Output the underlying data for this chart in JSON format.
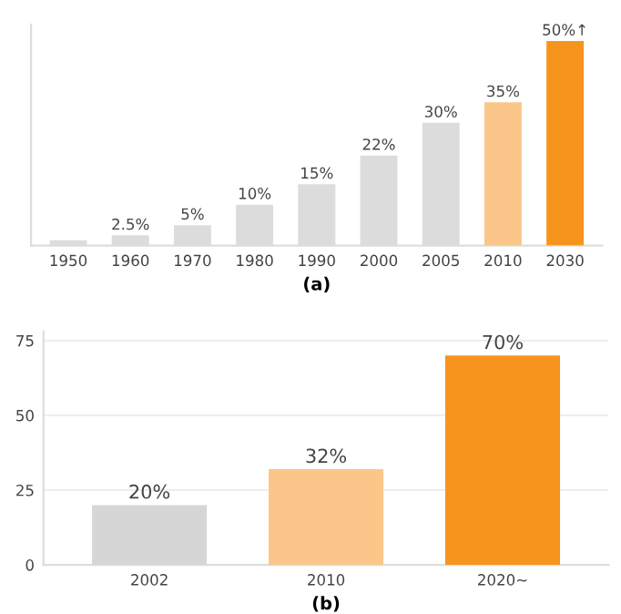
{
  "chart_data": [
    {
      "type": "bar",
      "xlabel": "(a)",
      "categories": [
        "1950",
        "1960",
        "1970",
        "1980",
        "1990",
        "2000",
        "2005",
        "2010",
        "2030"
      ],
      "values": [
        1.3,
        2.5,
        5,
        10,
        15,
        22,
        30,
        35,
        50
      ],
      "value_labels": [
        null,
        "2.5%",
        "5%",
        "10%",
        "15%",
        "22%",
        "30%",
        "35%",
        "50%↑"
      ],
      "colors": [
        "#dcdcdc",
        "#dcdcdc",
        "#dcdcdc",
        "#dcdcdc",
        "#dcdcdc",
        "#dcdcdc",
        "#dcdcdc",
        "#fbc68a",
        "#f7941d"
      ],
      "grid": false,
      "legend": false,
      "tick_labels": "x"
    },
    {
      "type": "bar",
      "xlabel": "(b)",
      "categories": [
        "2002",
        "2010",
        "2020~"
      ],
      "values": [
        20,
        32,
        70
      ],
      "value_labels": [
        "20%",
        "32%",
        "70%"
      ],
      "colors": [
        "#d6d6d6",
        "#fbc68a",
        "#f7941d"
      ],
      "ylim": [
        0,
        78
      ],
      "yticks": [
        0,
        25,
        50,
        75
      ],
      "grid": "y",
      "legend": false
    }
  ]
}
